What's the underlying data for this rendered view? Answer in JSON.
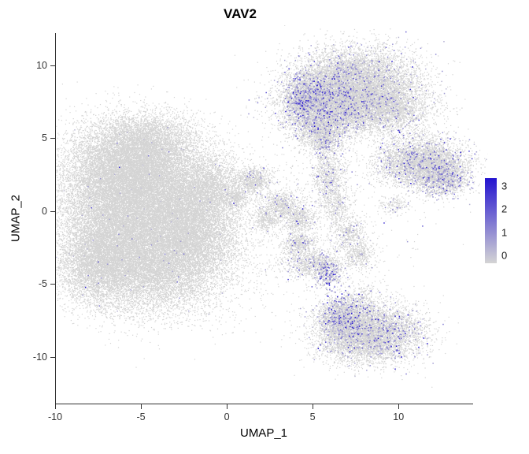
{
  "chart_data": {
    "type": "scatter",
    "title": "VAV2",
    "xlabel": "UMAP_1",
    "ylabel": "UMAP_2",
    "xlim": [
      -10,
      14.3
    ],
    "ylim": [
      -13.2,
      12.2
    ],
    "x_ticks": [
      -10,
      -5,
      0,
      5,
      10
    ],
    "y_ticks": [
      -10,
      -5,
      0,
      5,
      10
    ],
    "grid": false,
    "background": "#ffffff",
    "color_low": "#d4d4d4",
    "color_high": "#2313d0",
    "legend": {
      "position": "right",
      "ticks": [
        0,
        1,
        2,
        3
      ],
      "bar_min": -0.35,
      "bar_max": 3.35,
      "max_value": 3.35
    },
    "cluster_fields": [
      "cx",
      "cy",
      "sx",
      "sy",
      "n",
      "expr_frac",
      "expr_scale"
    ],
    "clusters": [
      [
        -5.8,
        3.0,
        1.9,
        1.6,
        9000,
        0.002,
        0.5
      ],
      [
        -6.6,
        -0.6,
        1.7,
        2.1,
        9000,
        0.002,
        0.5
      ],
      [
        -4.2,
        -3.6,
        2.2,
        1.7,
        10000,
        0.002,
        0.5
      ],
      [
        -3.1,
        0.8,
        1.9,
        1.9,
        8000,
        0.002,
        0.5
      ],
      [
        -1.9,
        -1.4,
        1.3,
        1.6,
        4000,
        0.003,
        0.5
      ],
      [
        -4.6,
        4.9,
        1.4,
        0.9,
        2600,
        0.002,
        0.5
      ],
      [
        -7.6,
        -3.8,
        1.1,
        1.3,
        3000,
        0.002,
        0.5
      ],
      [
        -0.9,
        1.7,
        0.9,
        1.0,
        1400,
        0.004,
        0.5
      ],
      [
        7.6,
        9.1,
        1.8,
        1.1,
        6000,
        0.05,
        0.9
      ],
      [
        6.2,
        7.3,
        1.5,
        1.0,
        5000,
        0.07,
        0.9
      ],
      [
        4.7,
        7.6,
        0.7,
        1.0,
        1900,
        0.22,
        1.0
      ],
      [
        9.2,
        7.0,
        1.4,
        0.9,
        3200,
        0.05,
        0.9
      ],
      [
        5.6,
        5.4,
        0.8,
        0.7,
        1400,
        0.08,
        0.9
      ],
      [
        5.6,
        4.5,
        0.35,
        0.6,
        250,
        0.1,
        0.9
      ],
      [
        11.4,
        3.3,
        1.3,
        0.85,
        4200,
        0.07,
        0.9
      ],
      [
        12.6,
        2.2,
        0.7,
        0.6,
        1300,
        0.14,
        0.9
      ],
      [
        8.3,
        -8.4,
        1.5,
        1.0,
        6200,
        0.07,
        0.9
      ],
      [
        6.7,
        -7.2,
        0.7,
        0.75,
        1600,
        0.16,
        0.9
      ],
      [
        7.9,
        -5.9,
        0.5,
        0.6,
        200,
        0.05,
        0.8
      ],
      [
        1.6,
        2.1,
        0.5,
        0.45,
        700,
        0.03,
        0.8
      ],
      [
        3.2,
        0.4,
        0.55,
        0.5,
        650,
        0.03,
        0.8
      ],
      [
        4.3,
        -0.6,
        0.45,
        0.5,
        500,
        0.05,
        0.8
      ],
      [
        4.2,
        -2.2,
        0.5,
        0.4,
        500,
        0.04,
        0.8
      ],
      [
        4.9,
        -3.6,
        0.85,
        0.5,
        900,
        0.08,
        0.8
      ],
      [
        5.9,
        -4.3,
        0.4,
        0.5,
        420,
        0.28,
        0.9
      ],
      [
        2.3,
        -0.6,
        0.4,
        0.4,
        350,
        0.02,
        0.8
      ],
      [
        0.6,
        0.9,
        0.35,
        0.35,
        260,
        0.02,
        0.8
      ],
      [
        5.9,
        2.3,
        0.5,
        0.9,
        750,
        0.06,
        0.8
      ],
      [
        6.4,
        0.5,
        0.45,
        0.6,
        380,
        0.05,
        0.8
      ],
      [
        7.1,
        -1.5,
        0.5,
        0.6,
        460,
        0.05,
        0.8
      ],
      [
        7.7,
        -3.0,
        0.5,
        0.5,
        400,
        0.05,
        0.8
      ],
      [
        9.7,
        0.4,
        0.45,
        0.35,
        170,
        0.05,
        0.8
      ],
      [
        2.6,
        0.6,
        2.6,
        2.2,
        420,
        0.02,
        0.8
      ],
      [
        6.6,
        -2.2,
        2.0,
        1.8,
        320,
        0.03,
        0.8
      ],
      [
        1.0,
        -5.5,
        2.5,
        1.5,
        120,
        0.02,
        0.8
      ]
    ]
  }
}
